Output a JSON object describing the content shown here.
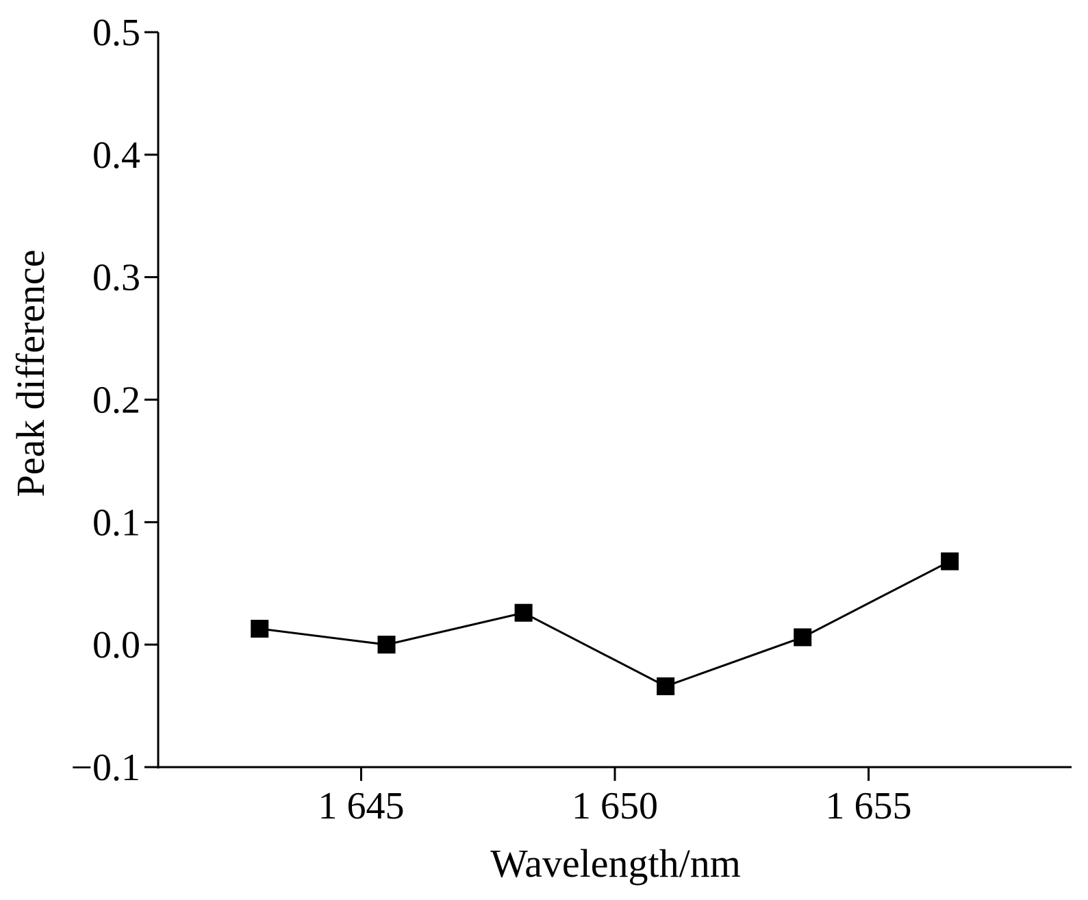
{
  "chart_data": {
    "type": "line",
    "title": "",
    "xlabel": "Wavelength/nm",
    "ylabel": "Peak difference",
    "xlim": [
      1641,
      1659
    ],
    "ylim": [
      -0.1,
      0.5
    ],
    "x_ticks": [
      1645,
      1650,
      1655
    ],
    "x_tick_labels": [
      "1 645",
      "1 650",
      "1 655"
    ],
    "y_ticks": [
      -0.1,
      0.0,
      0.1,
      0.2,
      0.3,
      0.4,
      0.5
    ],
    "y_tick_labels": [
      "−0.1",
      "0.0",
      "0.1",
      "0.2",
      "0.3",
      "0.4",
      "0.5"
    ],
    "grid": false,
    "series": [
      {
        "marker": "square",
        "color": "#000000",
        "x": [
          1643.0,
          1645.5,
          1648.2,
          1651.0,
          1653.7,
          1656.6
        ],
        "y": [
          0.013,
          0.0,
          0.026,
          -0.034,
          0.006,
          0.068
        ]
      }
    ]
  }
}
